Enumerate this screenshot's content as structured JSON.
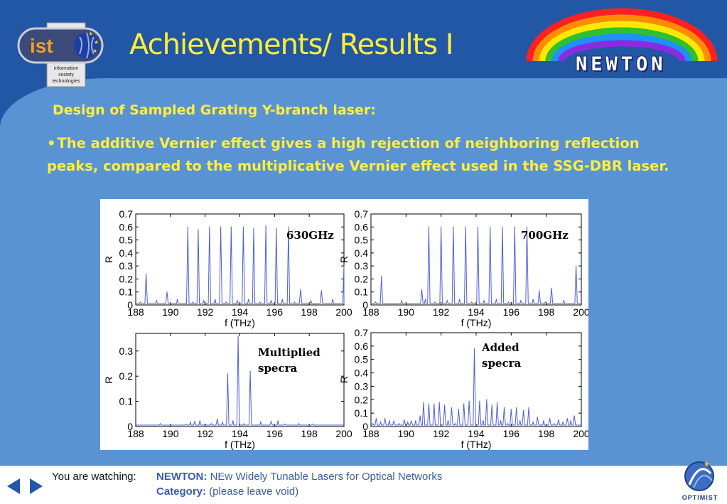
{
  "slide": {
    "title": "Achievements/ Results I",
    "subtitle": "Design of Sampled Grating Y-branch laser:",
    "bullet_mark": "•",
    "bullet_text": "The additive Vernier effect gives a high rejection of neighboring reflection peaks, compared to the multiplicative Vernier effect used in the SSG-DBR laser."
  },
  "logos": {
    "ist_text": "ist",
    "ist_caption": [
      "information",
      "society",
      "technologies"
    ],
    "newton_text": "NEWTON",
    "optimist_text": "OPTIMIST"
  },
  "footer": {
    "watching_label": "You are watching:",
    "project_name": "NEWTON:",
    "project_title": "NEw Widely Tunable Lasers for Optical Networks",
    "category_label": "Category:",
    "category_value": "(please leave void)"
  },
  "colors": {
    "dark_blue": "#2257a6",
    "light_blue": "#5a93d4",
    "title_yellow": "#ffef3a",
    "trace_blue": "#4d5fd8"
  },
  "icons": {
    "prev": "triangle-left-icon",
    "next": "triangle-right-icon"
  },
  "chart_data": [
    {
      "type": "line",
      "annotation": "630GHz",
      "xlabel": "f (THz)",
      "ylabel": "R",
      "xlim": [
        188,
        200
      ],
      "ylim": [
        0,
        0.7
      ],
      "xticks": [
        188,
        190,
        192,
        194,
        196,
        198,
        200
      ],
      "yticks": [
        0,
        0.1,
        0.2,
        0.3,
        0.4,
        0.5,
        0.6,
        0.7
      ],
      "peaks": [
        [
          188.6,
          0.24
        ],
        [
          189.8,
          0.1
        ],
        [
          191.0,
          0.6
        ],
        [
          191.6,
          0.58
        ],
        [
          192.25,
          0.6
        ],
        [
          192.9,
          0.6
        ],
        [
          193.5,
          0.6
        ],
        [
          194.2,
          0.6
        ],
        [
          194.8,
          0.59
        ],
        [
          195.5,
          0.61
        ],
        [
          196.1,
          0.59
        ],
        [
          196.8,
          0.6
        ],
        [
          197.5,
          0.12
        ],
        [
          198.7,
          0.11
        ],
        [
          200.0,
          0.3
        ]
      ]
    },
    {
      "type": "line",
      "annotation": "700GHz",
      "xlabel": "f (THz)",
      "ylabel": "R",
      "xlim": [
        188,
        200
      ],
      "ylim": [
        0,
        0.7
      ],
      "xticks": [
        188,
        190,
        192,
        194,
        196,
        198,
        200
      ],
      "yticks": [
        0,
        0.1,
        0.2,
        0.3,
        0.4,
        0.5,
        0.6,
        0.7
      ],
      "peaks": [
        [
          188.6,
          0.22
        ],
        [
          190.9,
          0.12
        ],
        [
          191.3,
          0.6
        ],
        [
          192.0,
          0.6
        ],
        [
          192.7,
          0.6
        ],
        [
          193.4,
          0.6
        ],
        [
          194.1,
          0.6
        ],
        [
          194.8,
          0.6
        ],
        [
          195.5,
          0.6
        ],
        [
          196.2,
          0.6
        ],
        [
          196.9,
          0.6
        ],
        [
          197.6,
          0.11
        ],
        [
          198.3,
          0.13
        ],
        [
          199.7,
          0.3
        ]
      ]
    },
    {
      "type": "line",
      "annotation": "Multiplied specra",
      "xlabel": "f (THz)",
      "ylabel": "R",
      "xlim": [
        188,
        200
      ],
      "ylim": [
        0,
        0.37
      ],
      "xticks": [
        188,
        190,
        192,
        194,
        196,
        198,
        200
      ],
      "yticks": [
        0,
        0.1,
        0.2,
        0.3
      ],
      "peaks": [
        [
          190.9,
          0.01
        ],
        [
          191.4,
          0.02
        ],
        [
          192.0,
          0.01
        ],
        [
          192.7,
          0.03
        ],
        [
          193.3,
          0.21
        ],
        [
          193.9,
          0.36
        ],
        [
          194.6,
          0.22
        ],
        [
          195.8,
          0.02
        ],
        [
          196.6,
          0.01
        ],
        [
          198.2,
          0.01
        ]
      ]
    },
    {
      "type": "line",
      "annotation": "Added specra",
      "xlabel": "f (THz)",
      "ylabel": "R",
      "xlim": [
        188,
        200
      ],
      "ylim": [
        0,
        0.7
      ],
      "xticks": [
        188,
        190,
        192,
        194,
        196,
        198,
        200
      ],
      "yticks": [
        0,
        0.1,
        0.2,
        0.3,
        0.4,
        0.5,
        0.6,
        0.7
      ],
      "peaks": [
        [
          188.3,
          0.06
        ],
        [
          188.8,
          0.06
        ],
        [
          189.3,
          0.04
        ],
        [
          189.9,
          0.05
        ],
        [
          190.3,
          0.04
        ],
        [
          190.8,
          0.08
        ],
        [
          191.0,
          0.18
        ],
        [
          191.3,
          0.17
        ],
        [
          191.6,
          0.17
        ],
        [
          191.9,
          0.18
        ],
        [
          192.2,
          0.16
        ],
        [
          192.6,
          0.14
        ],
        [
          193.0,
          0.13
        ],
        [
          193.3,
          0.17
        ],
        [
          193.6,
          0.19
        ],
        [
          193.9,
          0.58
        ],
        [
          194.2,
          0.19
        ],
        [
          194.6,
          0.2
        ],
        [
          194.9,
          0.16
        ],
        [
          195.2,
          0.18
        ],
        [
          195.6,
          0.14
        ],
        [
          196.0,
          0.13
        ],
        [
          196.3,
          0.14
        ],
        [
          196.7,
          0.12
        ],
        [
          197.0,
          0.14
        ],
        [
          197.5,
          0.07
        ],
        [
          198.2,
          0.06
        ],
        [
          198.7,
          0.05
        ],
        [
          199.2,
          0.06
        ],
        [
          199.6,
          0.08
        ]
      ]
    }
  ]
}
